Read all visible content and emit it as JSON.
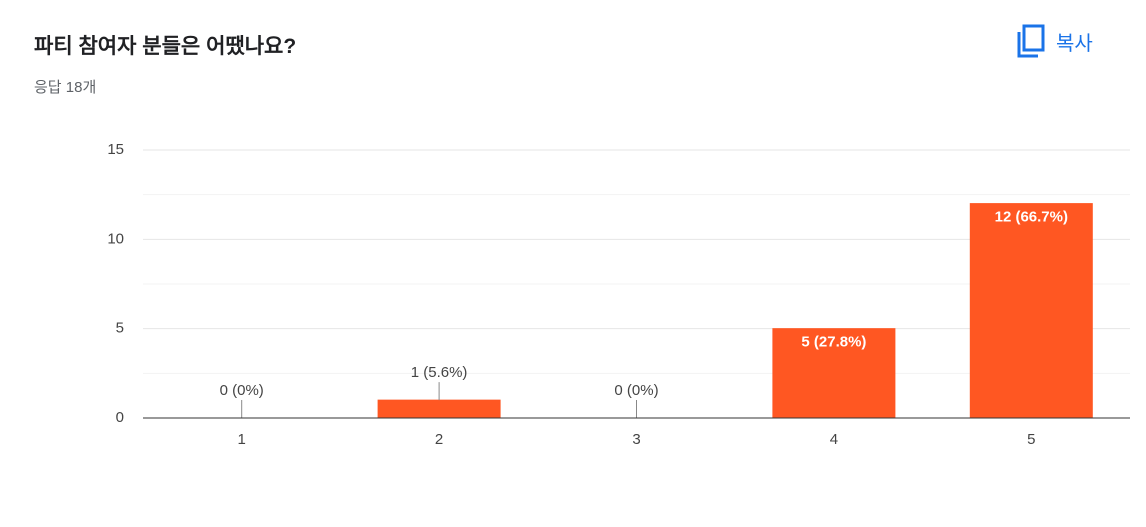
{
  "header": {
    "title": "파티 참여자 분들은 어땠나요?",
    "subtitle": "응답 18개",
    "copy_button": "복사"
  },
  "chart_data": {
    "type": "bar",
    "categories": [
      "1",
      "2",
      "3",
      "4",
      "5"
    ],
    "values": [
      0,
      1,
      0,
      5,
      12
    ],
    "value_labels": [
      "0 (0%)",
      "1 (5.6%)",
      "0 (0%)",
      "5 (27.8%)",
      "12 (66.7%)"
    ],
    "color": "#ff5722",
    "ylim": [
      0,
      15
    ],
    "yticks": [
      0,
      5,
      10,
      15
    ],
    "minor_yticks": [
      2.5,
      7.5,
      12.5
    ],
    "grid": true
  }
}
